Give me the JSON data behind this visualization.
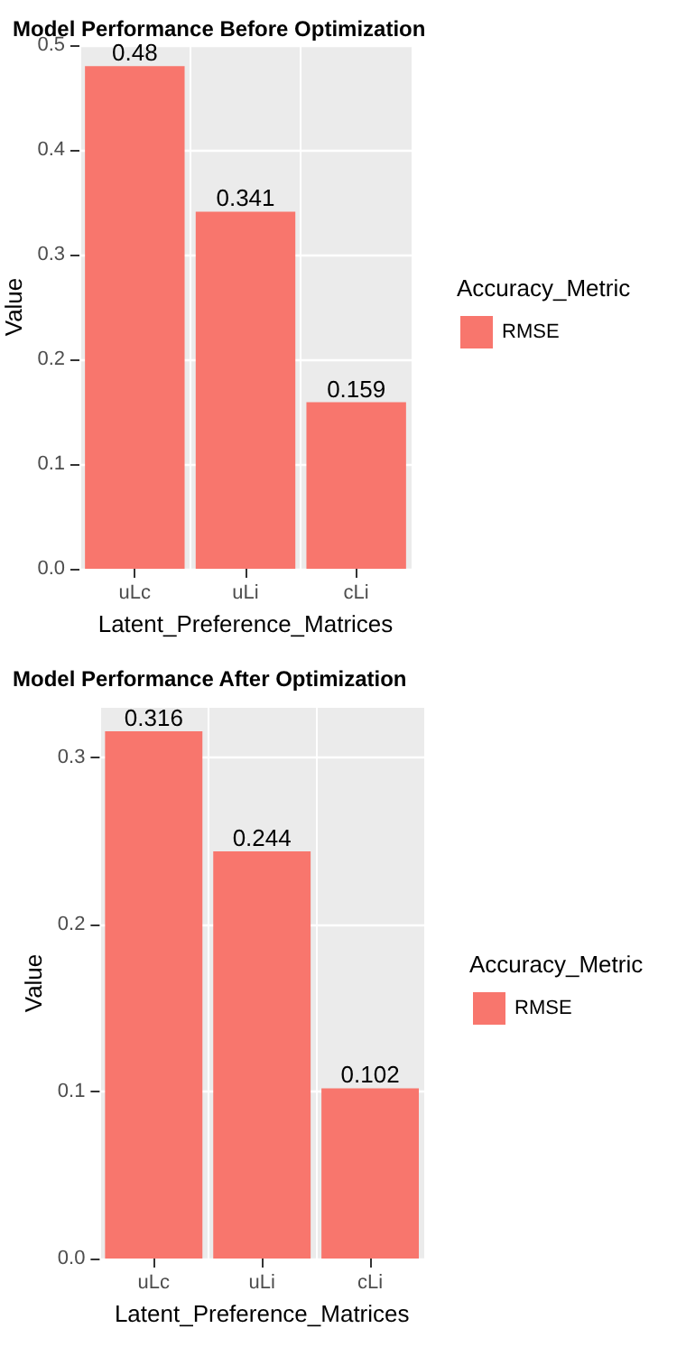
{
  "chart_data": [
    {
      "type": "bar",
      "title": "Model Performance Before Optimization",
      "xlabel": "Latent_Preference_Matrices",
      "ylabel": "Value",
      "legend_title": "Accuracy_Metric",
      "categories": [
        "uLc",
        "uLi",
        "cLi"
      ],
      "series": [
        {
          "name": "RMSE",
          "color": "#f8766d",
          "values": [
            0.48,
            0.341,
            0.159
          ]
        }
      ],
      "ylim": [
        0,
        0.5
      ],
      "yticks": [
        {
          "value": 0,
          "label": "0.0"
        },
        0.1,
        0.2,
        0.3,
        0.4,
        0.5
      ],
      "grid": true,
      "legend": "right",
      "data_labels": true
    },
    {
      "type": "bar",
      "title": "Model Performance After Optimization",
      "xlabel": "Latent_Preference_Matrices",
      "ylabel": "Value",
      "legend_title": "Accuracy_Metric",
      "categories": [
        "uLc",
        "uLi",
        "cLi"
      ],
      "series": [
        {
          "name": "RMSE",
          "color": "#f8766d",
          "values": [
            0.316,
            0.244,
            0.102
          ]
        }
      ],
      "ylim": [
        0,
        0.33
      ],
      "yticks": [
        {
          "value": 0,
          "label": "0.0"
        },
        0.1,
        0.2,
        0.3
      ],
      "grid": true,
      "legend": "right",
      "data_labels": true
    }
  ]
}
